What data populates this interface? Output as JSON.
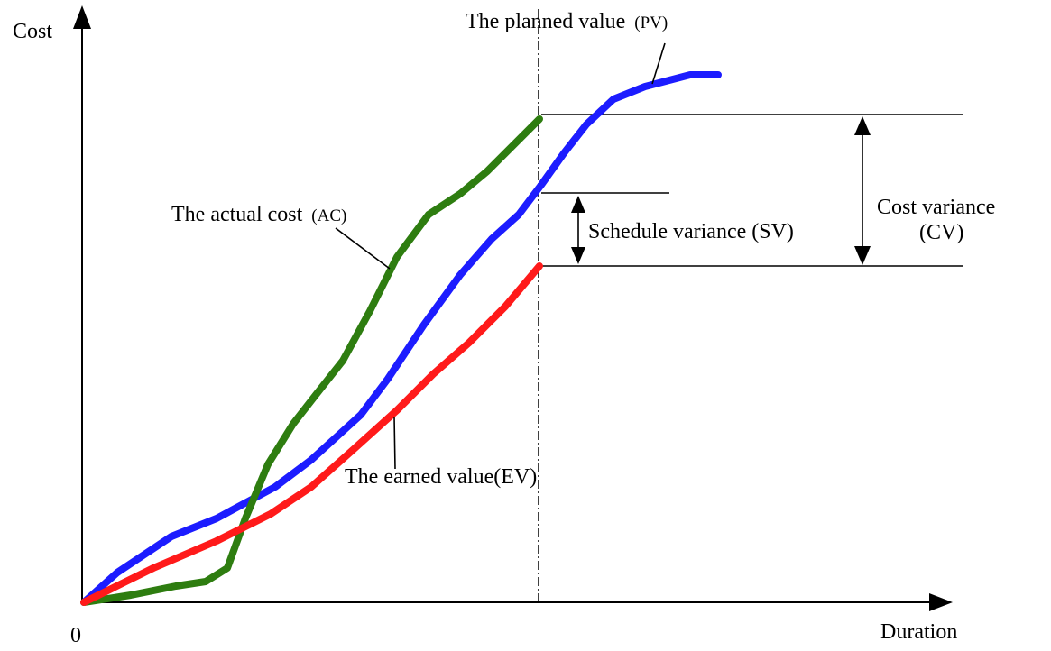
{
  "axes": {
    "y_label": "Cost",
    "x_label": "Duration",
    "origin_label": "0"
  },
  "labels": {
    "pv_text": "The planned value",
    "pv_abbr": "(PV)",
    "ac_text": "The actual cost",
    "ac_abbr": "(AC)",
    "ev_text": "The earned value(EV)",
    "sv_text": "Schedule variance (SV)",
    "cv_line1": "Cost variance",
    "cv_line2": "(CV)"
  },
  "colors": {
    "pv": "#1c1cff",
    "ac": "#2e7d10",
    "ev": "#ff1a1a",
    "axis": "#000000"
  }
}
